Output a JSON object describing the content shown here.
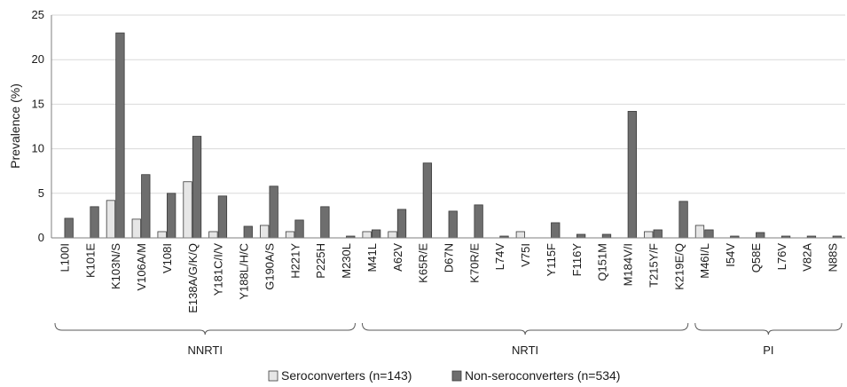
{
  "chart_data": {
    "type": "bar",
    "ylabel": "Prevalence (%)",
    "ylim": [
      0,
      25
    ],
    "yticks": [
      0,
      5,
      10,
      15,
      20,
      25
    ],
    "grid": true,
    "legend_position": "bottom",
    "categories": [
      "L100I",
      "K101E",
      "K103N/S",
      "V106A/M",
      "V108I",
      "E138A/G/K/Q",
      "Y181C/I/V",
      "Y188L/H/C",
      "G190A/S",
      "H221Y",
      "P225H",
      "M230L",
      "M41L",
      "A62V",
      "K65R/E",
      "D67N",
      "K70R/E",
      "L74V",
      "V75I",
      "Y115F",
      "F116Y",
      "Q151M",
      "M184V/I",
      "T215Y/F",
      "K219E/Q",
      "M46I/L",
      "I54V",
      "Q58E",
      "L76V",
      "V82A",
      "N88S"
    ],
    "series": [
      {
        "name": "Seroconverters (n=143)",
        "color": "#e6e6e6",
        "values": [
          0,
          0,
          4.2,
          2.1,
          0.7,
          6.3,
          0.7,
          0,
          1.4,
          0.7,
          0,
          0,
          0.7,
          0.7,
          0,
          0,
          0,
          0,
          0.7,
          0,
          0,
          0,
          0,
          0.7,
          0,
          1.4,
          0,
          0,
          0,
          0,
          0
        ]
      },
      {
        "name": "Non-seroconverters (n=534)",
        "color": "#6e6e6e",
        "values": [
          2.2,
          3.5,
          23.0,
          7.1,
          5.0,
          11.4,
          4.7,
          1.3,
          5.8,
          2.0,
          3.5,
          0.2,
          0.9,
          3.2,
          8.4,
          3.0,
          3.7,
          0.2,
          0,
          1.7,
          0.4,
          0.4,
          14.2,
          0.9,
          4.1,
          0.9,
          0.2,
          0.6,
          0.2,
          0.2,
          0.2
        ]
      }
    ],
    "groups": [
      {
        "label": "NNRTI",
        "start": 0,
        "end": 11
      },
      {
        "label": "NRTI",
        "start": 12,
        "end": 24
      },
      {
        "label": "PI",
        "start": 25,
        "end": 30
      }
    ]
  }
}
